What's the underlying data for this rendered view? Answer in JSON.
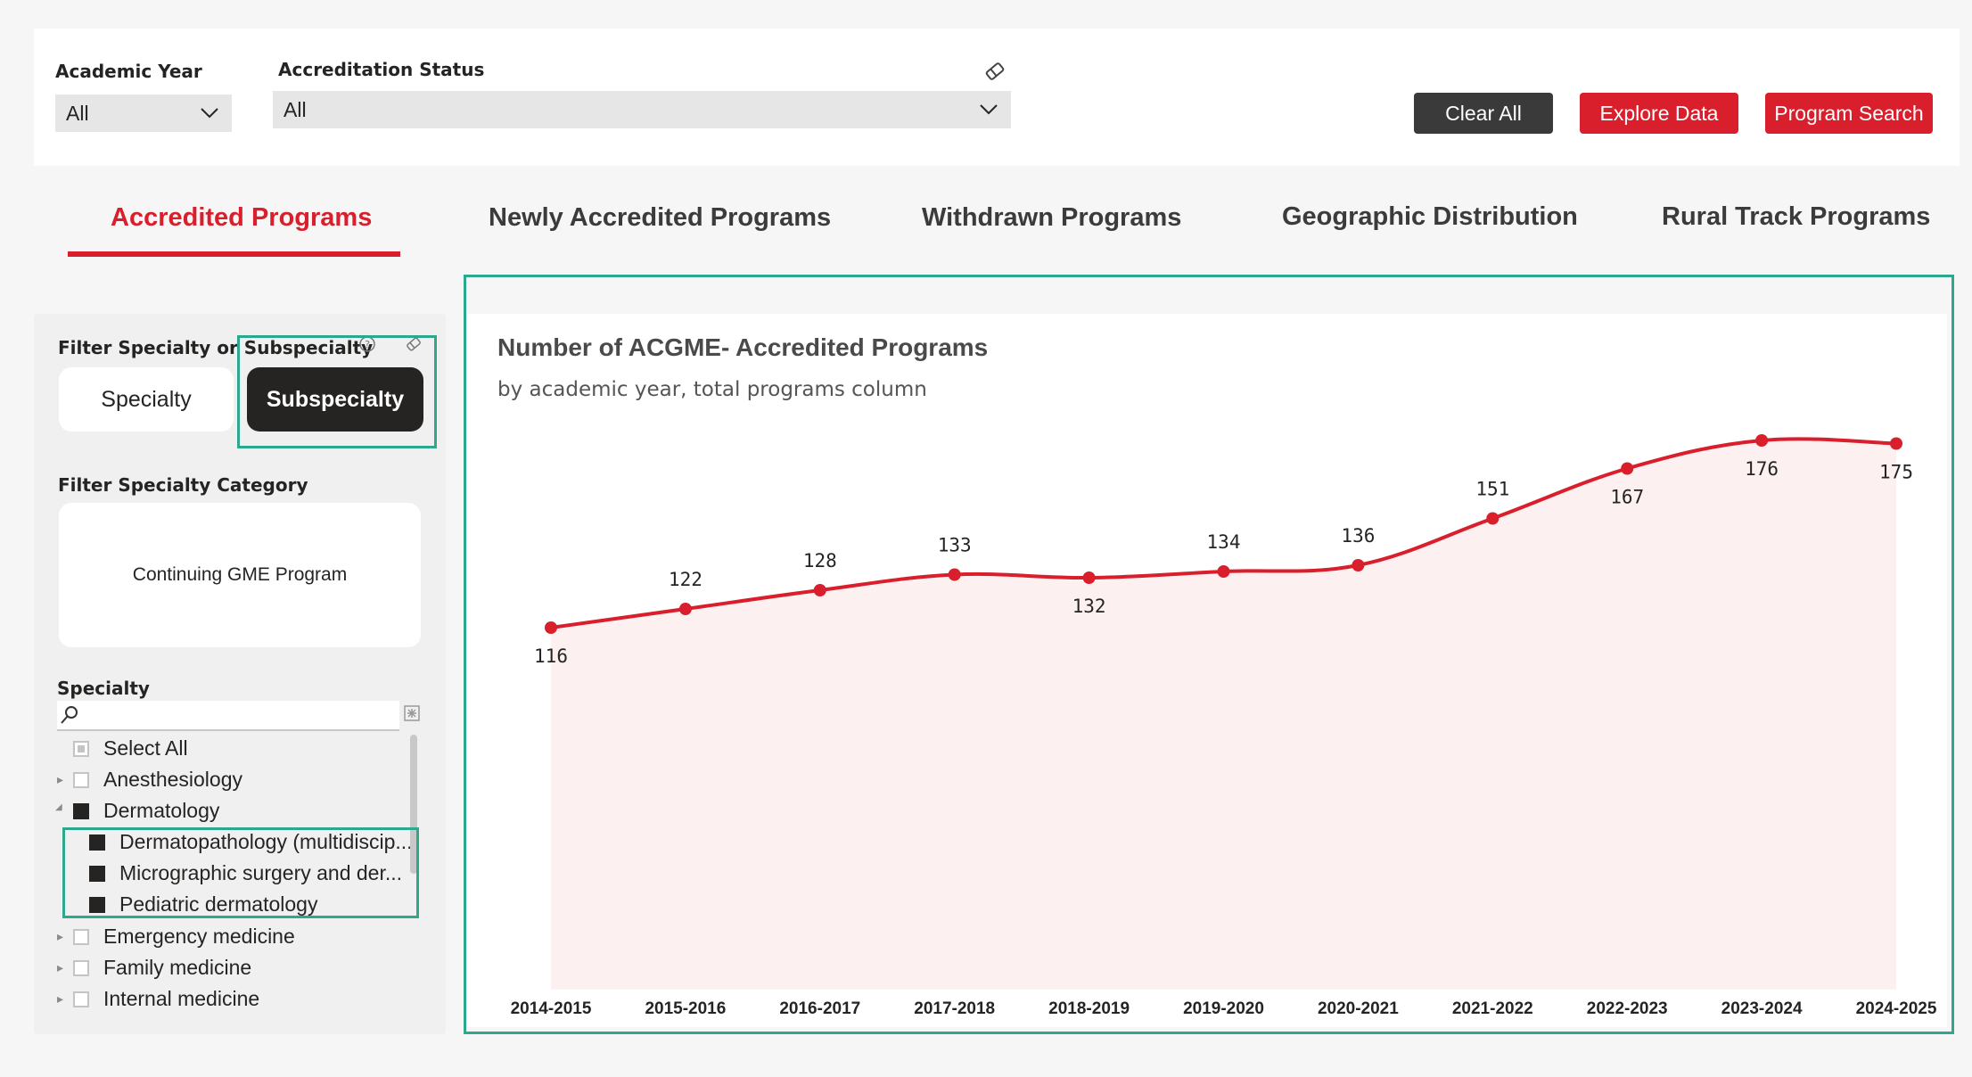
{
  "filters": {
    "academic_year": {
      "label": "Academic Year",
      "value": "All"
    },
    "accreditation_status": {
      "label": "Accreditation Status",
      "value": "All"
    }
  },
  "buttons": {
    "clear_all": "Clear All",
    "explore_data": "Explore Data",
    "program_search": "Program Search"
  },
  "tabs": [
    {
      "label": "Accredited Programs",
      "active": true
    },
    {
      "label": "Newly Accredited Programs",
      "active": false
    },
    {
      "label": "Withdrawn Programs",
      "active": false
    },
    {
      "label": "Geographic Distribution",
      "active": false
    },
    {
      "label": "Rural Track Programs",
      "active": false
    }
  ],
  "left_panel": {
    "filter_specialty_label": "Filter Specialty or Subspecialty",
    "toggle": {
      "specialty": "Specialty",
      "subspecialty": "Subspecialty",
      "selected": "Subspecialty"
    },
    "category_label": "Filter Specialty Category",
    "category_value": "Continuing GME Program",
    "specialty_label": "Specialty",
    "specialty_items": [
      {
        "label": "Select All",
        "state": "partial",
        "level": 0,
        "expander": ""
      },
      {
        "label": "Anesthesiology",
        "state": "off",
        "level": 0,
        "expander": "▸"
      },
      {
        "label": "Dermatology",
        "state": "on",
        "level": 0,
        "expander": "◢"
      },
      {
        "label": "Dermatopathology (multidiscip...",
        "state": "on",
        "level": 1,
        "expander": ""
      },
      {
        "label": "Micrographic surgery and der...",
        "state": "on",
        "level": 1,
        "expander": ""
      },
      {
        "label": "Pediatric dermatology",
        "state": "on",
        "level": 1,
        "expander": ""
      },
      {
        "label": "Emergency medicine",
        "state": "off",
        "level": 0,
        "expander": "▸"
      },
      {
        "label": "Family medicine",
        "state": "off",
        "level": 0,
        "expander": "▸"
      },
      {
        "label": "Internal medicine",
        "state": "off",
        "level": 0,
        "expander": "▸"
      }
    ]
  },
  "chart": {
    "title": "Number of ACGME- Accredited Programs",
    "subtitle": "by academic year, total programs column"
  },
  "chart_data": {
    "type": "area",
    "title": "Number of ACGME- Accredited Programs",
    "subtitle": "by academic year, total programs column",
    "categories": [
      "2014-2015",
      "2015-2016",
      "2016-2017",
      "2017-2018",
      "2018-2019",
      "2019-2020",
      "2020-2021",
      "2021-2022",
      "2022-2023",
      "2023-2024",
      "2024-2025"
    ],
    "series": [
      {
        "values": [
          116,
          122,
          128,
          133,
          132,
          134,
          136,
          151,
          167,
          176,
          175
        ]
      }
    ],
    "label_positions": [
      "below",
      "above",
      "above",
      "above",
      "below",
      "above",
      "above",
      "above",
      "below",
      "below",
      "below"
    ],
    "ylim": [
      0,
      178
    ],
    "line_color": "#d91e2c",
    "fill_color": "#fdf0f0",
    "grid": false,
    "legend": "none"
  },
  "colors": {
    "accent": "#d91e2c",
    "dark_button": "#3a3a3a",
    "highlight": "#2ea88c"
  }
}
